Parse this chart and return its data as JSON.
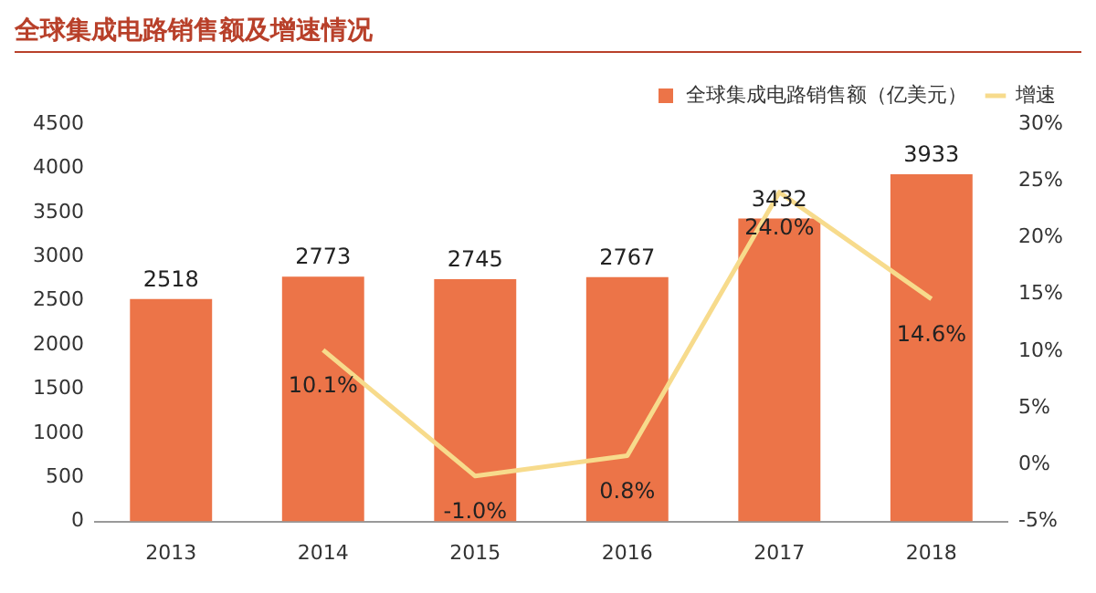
{
  "chart_data": {
    "type": "bar",
    "title": "全球集成电路销售额及增速情况",
    "categories": [
      "2013",
      "2014",
      "2015",
      "2016",
      "2017",
      "2018"
    ],
    "series": [
      {
        "name": "全球集成电路销售额（亿美元）",
        "color": "#ec7448",
        "values": [
          2518,
          2773,
          2745,
          2767,
          3432,
          3933
        ],
        "value_labels": [
          "2518",
          "2773",
          "2745",
          "2767",
          "3432",
          "3933"
        ]
      },
      {
        "name": "增速",
        "type": "line",
        "axis": "y2",
        "color": "#f7db8c",
        "values": [
          null,
          10.1,
          -1.0,
          0.8,
          24.0,
          14.6
        ],
        "value_labels": [
          null,
          "10.1%",
          "-1.0%",
          "0.8%",
          "24.0%",
          "14.6%"
        ]
      }
    ],
    "ylim": [
      0,
      4500
    ],
    "yticks": [
      0,
      500,
      1000,
      1500,
      2000,
      2500,
      3000,
      3500,
      4000,
      4500
    ],
    "y2lim": [
      -5,
      30
    ],
    "y2ticks": [
      {
        "value": -5,
        "label": "-5%"
      },
      {
        "value": 0,
        "label": "0%"
      },
      {
        "value": 5,
        "label": "5%"
      },
      {
        "value": 10,
        "label": "10%"
      },
      {
        "value": 15,
        "label": "15%"
      },
      {
        "value": 20,
        "label": "20%"
      },
      {
        "value": 25,
        "label": "25%"
      },
      {
        "value": 30,
        "label": "30%"
      }
    ],
    "grid": false,
    "legend": "top",
    "marker": "none"
  }
}
